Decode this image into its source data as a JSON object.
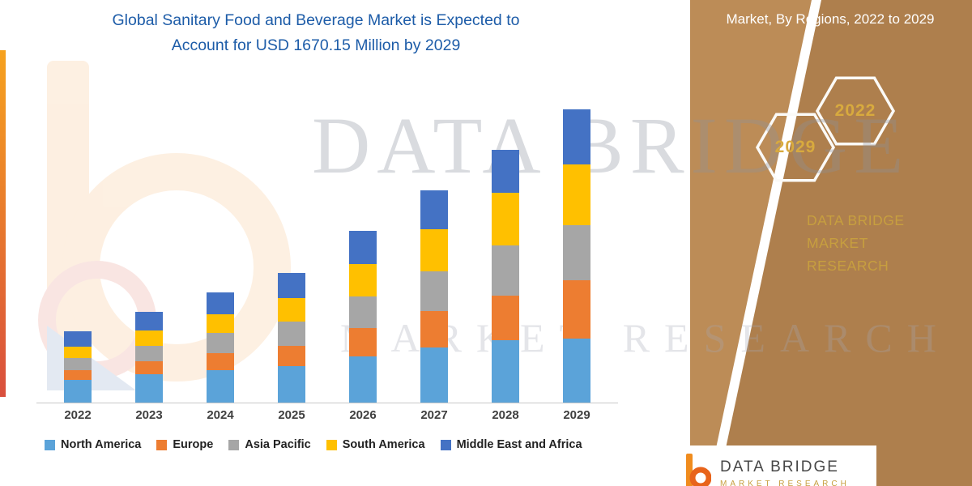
{
  "title": {
    "line1": "Global Sanitary Food and Beverage Market is Expected to",
    "line2": "Account for USD 1670.15 Million by 2029"
  },
  "side_panel": {
    "header": "Market, By Regions, 2022 to 2029",
    "hexagons": [
      {
        "label": "2029"
      },
      {
        "label": "2022"
      }
    ],
    "brand_line1": "DATA BRIDGE MARKET",
    "brand_line2": "RESEARCH",
    "panel_color": "#AE7F4D",
    "panel_color_light": "#BC8C57",
    "gold_accent": "#C79F3F"
  },
  "watermark": {
    "line1": "DATA BRIDGE",
    "line2": "MARKET RESEARCH"
  },
  "footer": {
    "brand": "DATA BRIDGE",
    "sub": "MARKET RESEARCH"
  },
  "chart_data": {
    "type": "bar",
    "stacked": true,
    "unit": "USD Million",
    "projected_total_2029": 1670.15,
    "categories": [
      "2022",
      "2023",
      "2024",
      "2025",
      "2026",
      "2027",
      "2028",
      "2029"
    ],
    "series": [
      {
        "name": "North America",
        "color": "#5BA3D9",
        "values": [
          130,
          160,
          185,
          210,
          265,
          315,
          355,
          365
        ]
      },
      {
        "name": "Europe",
        "color": "#ED7D31",
        "values": [
          55,
          75,
          95,
          115,
          160,
          205,
          255,
          330
        ]
      },
      {
        "name": "Asia Pacific",
        "color": "#A6A6A6",
        "values": [
          70,
          90,
          115,
          135,
          180,
          230,
          285,
          315
        ]
      },
      {
        "name": "South America",
        "color": "#FFC000",
        "values": [
          65,
          85,
          110,
          135,
          185,
          240,
          300,
          345
        ]
      },
      {
        "name": "Middle East and Africa",
        "color": "#4472C4",
        "values": [
          85,
          105,
          125,
          145,
          190,
          220,
          245,
          315.15
        ]
      }
    ],
    "totals": [
      405,
      515,
      630,
      740,
      980,
      1210,
      1440,
      1670.15
    ],
    "ylim": [
      0,
      1800
    ],
    "xlabel": "",
    "ylabel": "",
    "gridlines": false,
    "legend_position": "bottom"
  }
}
